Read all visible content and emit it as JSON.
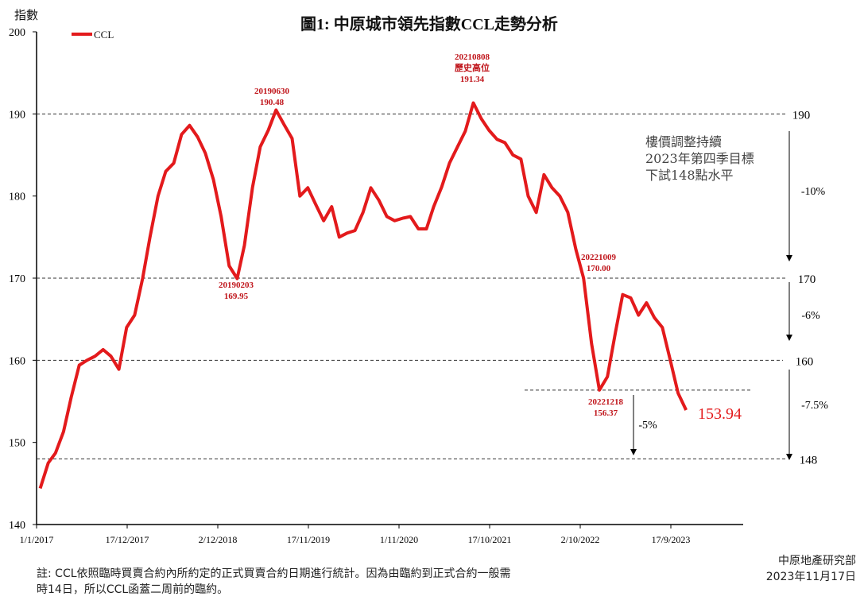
{
  "chart_data": {
    "type": "line",
    "title": "圖1: 中原城市領先指數CCL走勢分析",
    "ylabel": "指數",
    "xlabel": "",
    "ylim": [
      140,
      200
    ],
    "yticks": [
      140,
      150,
      160,
      170,
      180,
      190,
      200
    ],
    "xlim": [
      "2017-01-01",
      "2024-06-15"
    ],
    "xtick_labels": [
      "1/1/2017",
      "17/12/2017",
      "2/12/2018",
      "17/11/2019",
      "1/11/2020",
      "17/10/2021",
      "2/10/2022",
      "17/9/2023"
    ],
    "xtick_dates": [
      "2017-01-01",
      "2017-12-17",
      "2018-12-02",
      "2019-11-17",
      "2020-11-01",
      "2021-10-17",
      "2022-10-02",
      "2023-09-17"
    ],
    "grid": false,
    "legend": {
      "position": "top-left",
      "entries": [
        "CCL"
      ]
    },
    "series": [
      {
        "name": "CCL",
        "color": "#e31a1c",
        "x": [
          "2017-01",
          "2017-02",
          "2017-03",
          "2017-04",
          "2017-05",
          "2017-06",
          "2017-07",
          "2017-08",
          "2017-09",
          "2017-10",
          "2017-11",
          "2017-12",
          "2018-01",
          "2018-02",
          "2018-03",
          "2018-04",
          "2018-05",
          "2018-06",
          "2018-07",
          "2018-08",
          "2018-09",
          "2018-10",
          "2018-11",
          "2018-12",
          "2019-01",
          "2019-02",
          "2019-03",
          "2019-04",
          "2019-05",
          "2019-06",
          "2019-07",
          "2019-08",
          "2019-09",
          "2019-10",
          "2019-11",
          "2019-12",
          "2020-01",
          "2020-02",
          "2020-03",
          "2020-04",
          "2020-05",
          "2020-06",
          "2020-07",
          "2020-08",
          "2020-09",
          "2020-10",
          "2020-11",
          "2020-12",
          "2021-01",
          "2021-02",
          "2021-03",
          "2021-04",
          "2021-05",
          "2021-06",
          "2021-07",
          "2021-08",
          "2021-09",
          "2021-10",
          "2021-11",
          "2021-12",
          "2022-01",
          "2022-02",
          "2022-03",
          "2022-04",
          "2022-05",
          "2022-06",
          "2022-07",
          "2022-08",
          "2022-09",
          "2022-10",
          "2022-11",
          "2022-12",
          "2023-01",
          "2023-02",
          "2023-03",
          "2023-04",
          "2023-05",
          "2023-06",
          "2023-07",
          "2023-08",
          "2023-09",
          "2023-10",
          "2023-11"
        ],
        "values": [
          144.4,
          147.5,
          148.7,
          151.3,
          155.5,
          159.4,
          160.0,
          160.5,
          161.3,
          160.5,
          158.9,
          164.0,
          165.5,
          170.0,
          175.0,
          180.0,
          183.0,
          184.0,
          187.5,
          188.6,
          187.2,
          185.2,
          182.0,
          177.5,
          171.5,
          169.95,
          174.0,
          181.0,
          186.0,
          188.0,
          190.48,
          188.7,
          187.0,
          180.0,
          181.0,
          179.0,
          177.0,
          178.7,
          175.0,
          175.5,
          175.8,
          178.0,
          181.0,
          179.5,
          177.5,
          177.0,
          177.3,
          177.5,
          176.0,
          176.0,
          178.7,
          181.1,
          184.0,
          186.0,
          187.9,
          191.34,
          189.4,
          188.0,
          186.9,
          186.5,
          185.0,
          184.5,
          180.0,
          178.0,
          182.6,
          181.0,
          180.0,
          178.0,
          173.5,
          170.0,
          162.0,
          156.37,
          158.0,
          163.4,
          168.0,
          167.6,
          165.5,
          167.0,
          165.2,
          164.0,
          160.0,
          156.0,
          153.94
        ]
      }
    ],
    "reference_lines": [
      {
        "value": 190,
        "label": "190"
      },
      {
        "value": 170,
        "label": "170"
      },
      {
        "value": 160,
        "label": "160"
      },
      {
        "value": 148,
        "label": "148"
      },
      {
        "value": 156.37,
        "label": ""
      }
    ],
    "annotations": [
      {
        "x": "2019-02",
        "lines": [
          "20190203",
          "169.95"
        ]
      },
      {
        "x": "2019-06",
        "lines": [
          "20190630",
          "190.48"
        ]
      },
      {
        "x": "2021-08",
        "lines": [
          "20210808",
          "歷史高位",
          "191.34"
        ]
      },
      {
        "x": "2022-10",
        "lines": [
          "20221009",
          "170.00"
        ]
      },
      {
        "x": "2022-12",
        "lines": [
          "20221218",
          "156.37"
        ]
      }
    ],
    "change_labels": [
      "-10%",
      "-6%",
      "-7.5%",
      "-5%"
    ],
    "latest_value": "153.94",
    "target_text": [
      "樓價調整持續",
      "2023年第四季目標",
      "下試148點水平"
    ]
  },
  "footer": {
    "note_line1": "註: CCL依照臨時買賣合約內所約定的正式買賣合約日期進行統計。因為由臨約到正式合約一般需",
    "note_line2": "時14日，所以CCL函蓋二周前的臨約。",
    "source": "中原地產研究部",
    "date": "2023年11月17日"
  }
}
